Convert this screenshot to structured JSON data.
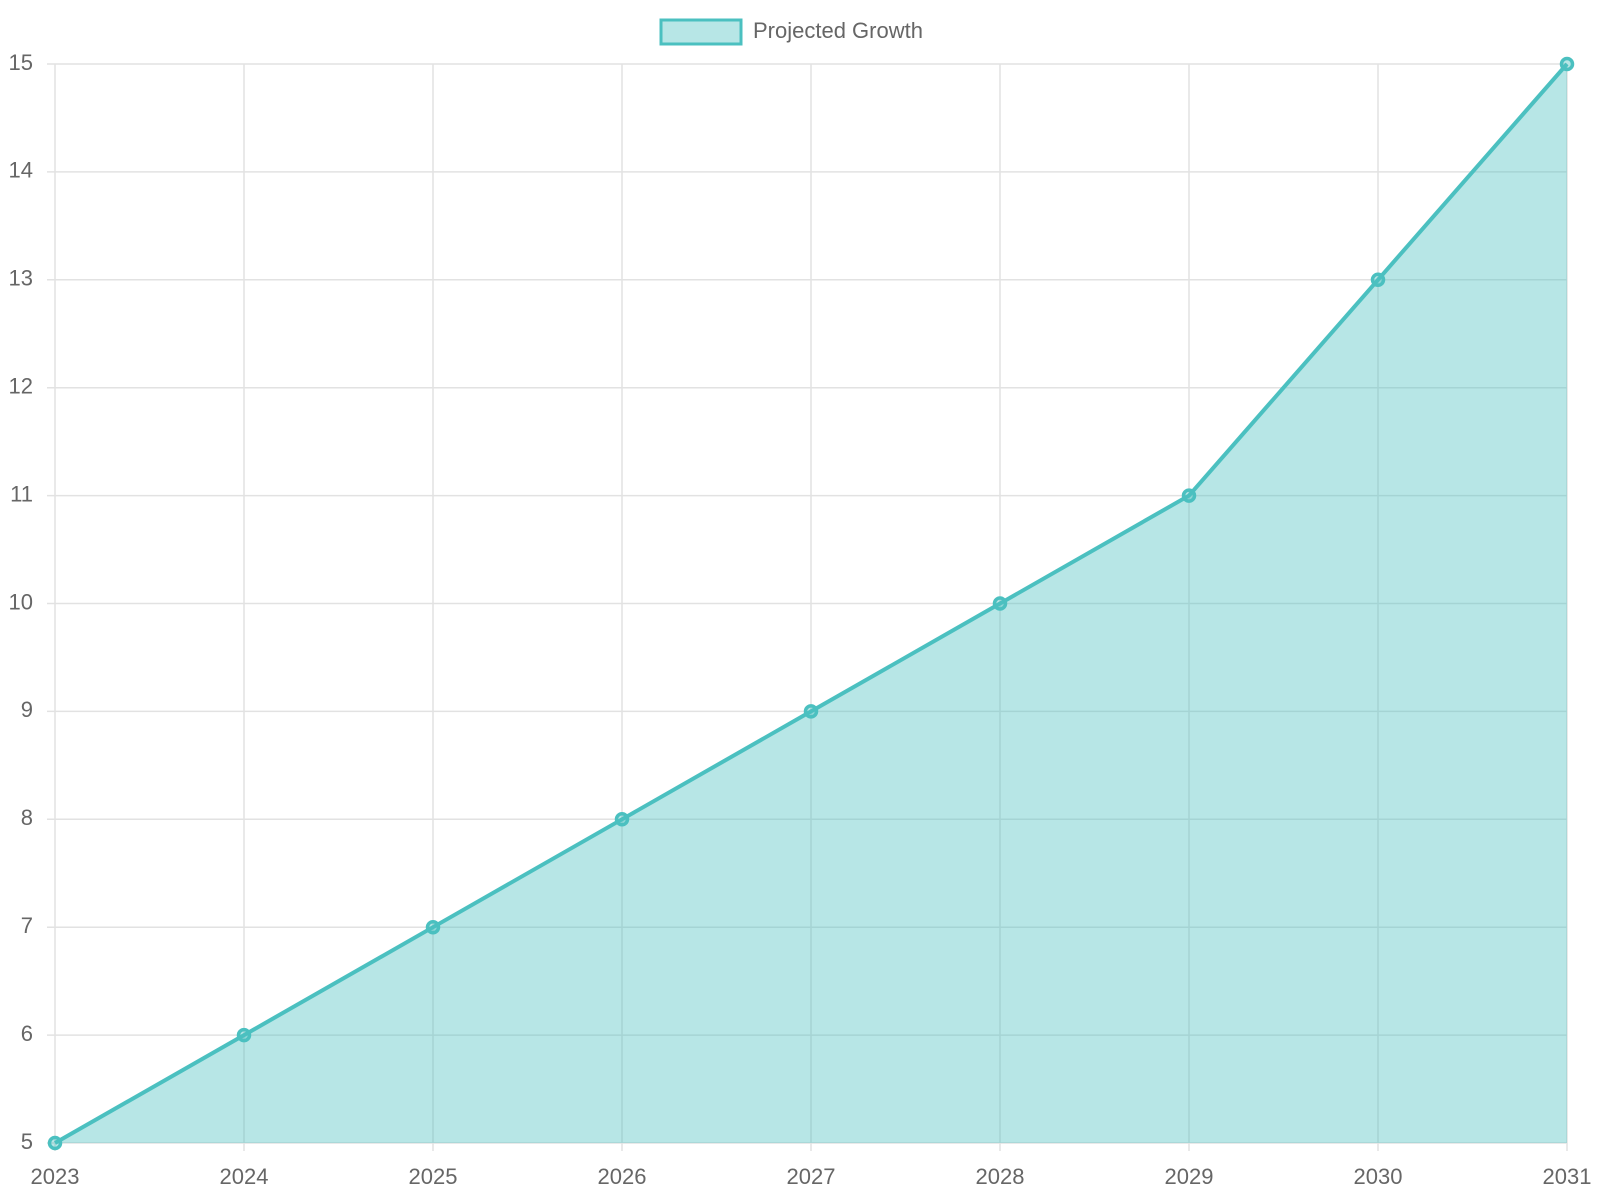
{
  "chart_data": {
    "type": "line",
    "fill": true,
    "categories": [
      "2023",
      "2024",
      "2025",
      "2026",
      "2027",
      "2028",
      "2029",
      "2030",
      "2031"
    ],
    "series": [
      {
        "name": "Projected Growth",
        "color": "#4bc0c0",
        "values": [
          5,
          6,
          7,
          8,
          9,
          10,
          11,
          13,
          15
        ]
      }
    ],
    "ylim": [
      5,
      15
    ],
    "yticks": [
      5,
      6,
      7,
      8,
      9,
      10,
      11,
      12,
      13,
      14,
      15
    ],
    "grid": true,
    "legend": "top"
  }
}
